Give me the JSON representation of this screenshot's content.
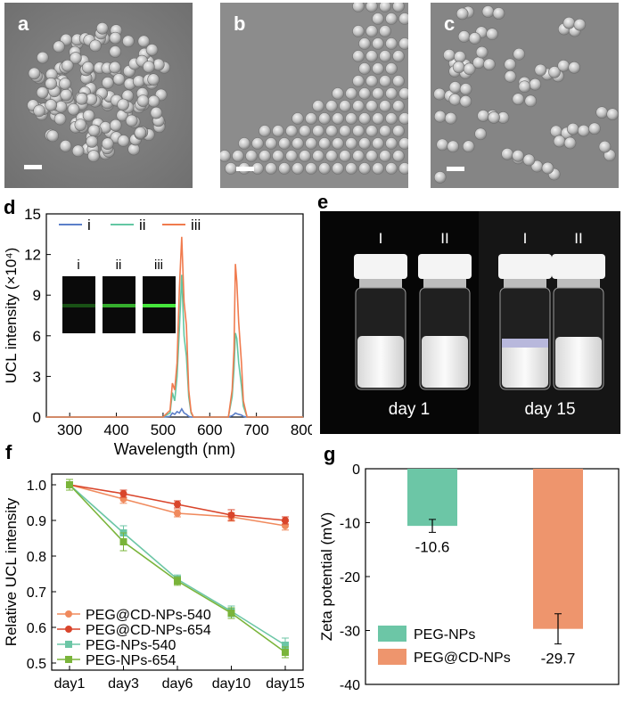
{
  "panels": {
    "a": {
      "label": "a"
    },
    "b": {
      "label": "b"
    },
    "c": {
      "label": "c"
    },
    "d": {
      "label": "d"
    },
    "e": {
      "label": "e"
    },
    "f": {
      "label": "f"
    },
    "g": {
      "label": "g"
    }
  },
  "panel_e": {
    "vial_labels": [
      "I",
      "II",
      "I",
      "II"
    ],
    "day_labels": [
      "day 1",
      "day 15"
    ]
  },
  "panel_d_inset": {
    "labels": [
      "i",
      "ii",
      "iii"
    ]
  },
  "chart_data": [
    {
      "panel": "d",
      "type": "line",
      "xlabel": "Wavelength (nm)",
      "ylabel": "UCL intensity (×10⁴)",
      "xlim": [
        250,
        800
      ],
      "ylim": [
        0,
        15
      ],
      "xticks": [
        300,
        400,
        500,
        600,
        700,
        800
      ],
      "yticks": [
        0,
        3,
        6,
        9,
        12,
        15
      ],
      "legend_position": "top-left",
      "colors": {
        "i": "#5b7fc9",
        "ii": "#63c7a3",
        "iii": "#f07b4e"
      },
      "series": [
        {
          "name": "i",
          "x": [
            250,
            500,
            515,
            520,
            525,
            530,
            535,
            540,
            545,
            550,
            555,
            560,
            565,
            640,
            648,
            652,
            655,
            658,
            662,
            668,
            672,
            680,
            800
          ],
          "y": [
            0,
            0,
            0.05,
            0.3,
            0.2,
            0.4,
            0.3,
            0.6,
            0.3,
            0.2,
            0.05,
            0,
            0,
            0,
            0.1,
            0.2,
            0.3,
            0.25,
            0.2,
            0.15,
            0.05,
            0,
            0
          ]
        },
        {
          "name": "ii",
          "x": [
            250,
            500,
            515,
            520,
            525,
            530,
            535,
            540,
            545,
            550,
            555,
            560,
            565,
            640,
            648,
            652,
            655,
            658,
            662,
            668,
            672,
            680,
            800
          ],
          "y": [
            0,
            0,
            0.3,
            1.8,
            1.2,
            3.0,
            6.5,
            10.5,
            6.0,
            4.5,
            1.5,
            0.3,
            0,
            0,
            1.5,
            3.5,
            6.2,
            5.8,
            4.0,
            2.3,
            0.8,
            0,
            0
          ]
        },
        {
          "name": "iii",
          "x": [
            250,
            500,
            515,
            520,
            525,
            530,
            535,
            540,
            545,
            550,
            555,
            560,
            565,
            640,
            648,
            652,
            655,
            658,
            662,
            668,
            672,
            680,
            800
          ],
          "y": [
            0,
            0,
            0.5,
            2.5,
            2.0,
            4.0,
            9.5,
            13.3,
            8.5,
            6.8,
            2.0,
            0.4,
            0,
            0,
            2.0,
            5.0,
            11.3,
            10.0,
            7.0,
            4.0,
            1.2,
            0,
            0
          ]
        }
      ]
    },
    {
      "panel": "f",
      "type": "line",
      "xlabel": "",
      "ylabel": "Relative UCL intensity",
      "categories": [
        "day1",
        "day3",
        "day6",
        "day10",
        "day15"
      ],
      "ylim": [
        0.48,
        1.03
      ],
      "yticks": [
        "0.5",
        "0.6",
        "0.7",
        "0.8",
        "0.9",
        "1.0"
      ],
      "legend_position": "bottom-left",
      "series": [
        {
          "name": "PEG@CD-NPs-540",
          "color": "#f08a5d",
          "values": [
            1.0,
            0.96,
            0.92,
            0.91,
            0.885
          ],
          "err": [
            0.015,
            0.012,
            0.01,
            0.012,
            0.012
          ]
        },
        {
          "name": "PEG@CD-NPs-654",
          "color": "#d9452b",
          "values": [
            1.0,
            0.975,
            0.945,
            0.915,
            0.9
          ],
          "err": [
            0.015,
            0.01,
            0.01,
            0.015,
            0.01
          ]
        },
        {
          "name": "PEG-NPs-540",
          "color": "#6cc6a6",
          "values": [
            1.0,
            0.865,
            0.735,
            0.645,
            0.55
          ],
          "err": [
            0.015,
            0.02,
            0.012,
            0.015,
            0.02
          ]
        },
        {
          "name": "PEG-NPs-654",
          "color": "#7ab43a",
          "values": [
            1.0,
            0.84,
            0.73,
            0.64,
            0.53
          ],
          "err": [
            0.015,
            0.025,
            0.012,
            0.015,
            0.015
          ]
        }
      ]
    },
    {
      "panel": "g",
      "type": "bar",
      "xlabel": "",
      "ylabel": "Zeta potential (mV)",
      "categories": [
        "PEG-NPs",
        "PEG@CD-NPs"
      ],
      "values": [
        -10.6,
        -29.7
      ],
      "err": [
        1.2,
        2.8
      ],
      "value_labels": [
        "-10.6",
        "-29.7"
      ],
      "ylim": [
        -40,
        0
      ],
      "yticks": [
        "0",
        "-10",
        "-20",
        "-30",
        "-40"
      ],
      "legend_position": "bottom-left",
      "colors": [
        "#6cc6a6",
        "#ee956d"
      ]
    }
  ]
}
